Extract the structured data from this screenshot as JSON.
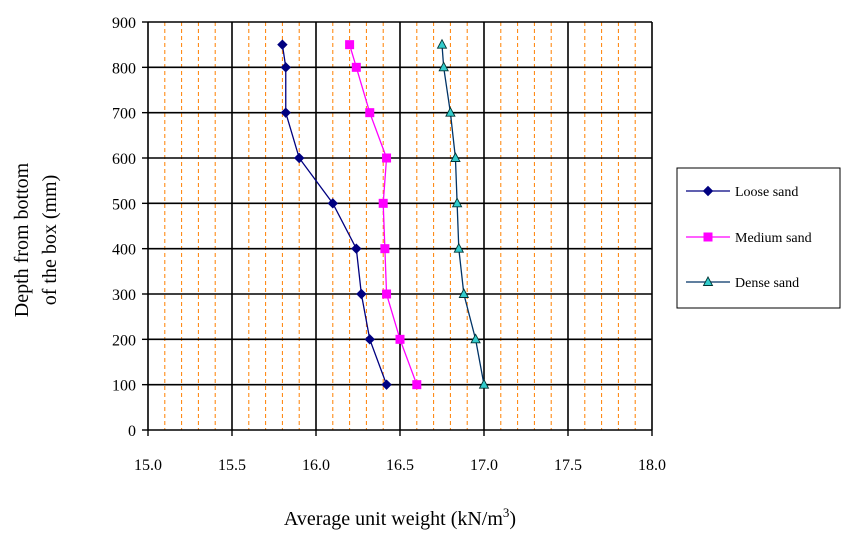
{
  "chart_data": {
    "type": "line",
    "xlabel": "Average unit weight (kN/m",
    "xlabel_sup": "3",
    "xlabel_tail": ")",
    "ylabel_line1": "Depth from bottom",
    "ylabel_line2": "of the box (mm)",
    "xlim": [
      15.0,
      18.0
    ],
    "ylim": [
      0,
      900
    ],
    "x_ticks": [
      "15.0",
      "15.5",
      "16.0",
      "16.5",
      "17.0",
      "17.5",
      "18.0"
    ],
    "y_ticks": [
      "0",
      "100",
      "200",
      "300",
      "400",
      "500",
      "600",
      "700",
      "800",
      "900"
    ],
    "grid_major": true,
    "grid_minor_vertical": true,
    "legend_position": "right",
    "series": [
      {
        "name": "Loose sand",
        "color": "#000080",
        "line_color": "#000080",
        "marker": "diamond",
        "points": [
          [
            16.42,
            100
          ],
          [
            16.32,
            200
          ],
          [
            16.27,
            300
          ],
          [
            16.24,
            400
          ],
          [
            16.1,
            500
          ],
          [
            15.9,
            600
          ],
          [
            15.82,
            700
          ],
          [
            15.82,
            800
          ],
          [
            15.8,
            850
          ]
        ]
      },
      {
        "name": "Medium sand",
        "color": "#ff00ff",
        "line_color": "#ff00ff",
        "marker": "square",
        "points": [
          [
            16.6,
            100
          ],
          [
            16.5,
            200
          ],
          [
            16.42,
            300
          ],
          [
            16.41,
            400
          ],
          [
            16.4,
            500
          ],
          [
            16.42,
            600
          ],
          [
            16.32,
            700
          ],
          [
            16.24,
            800
          ],
          [
            16.2,
            850
          ]
        ]
      },
      {
        "name": "Dense sand",
        "color": "#33cccc",
        "line_color": "#003366",
        "marker": "triangle",
        "points": [
          [
            17.0,
            100
          ],
          [
            16.95,
            200
          ],
          [
            16.88,
            300
          ],
          [
            16.85,
            400
          ],
          [
            16.84,
            500
          ],
          [
            16.83,
            600
          ],
          [
            16.8,
            700
          ],
          [
            16.76,
            800
          ],
          [
            16.75,
            850
          ]
        ]
      }
    ]
  }
}
